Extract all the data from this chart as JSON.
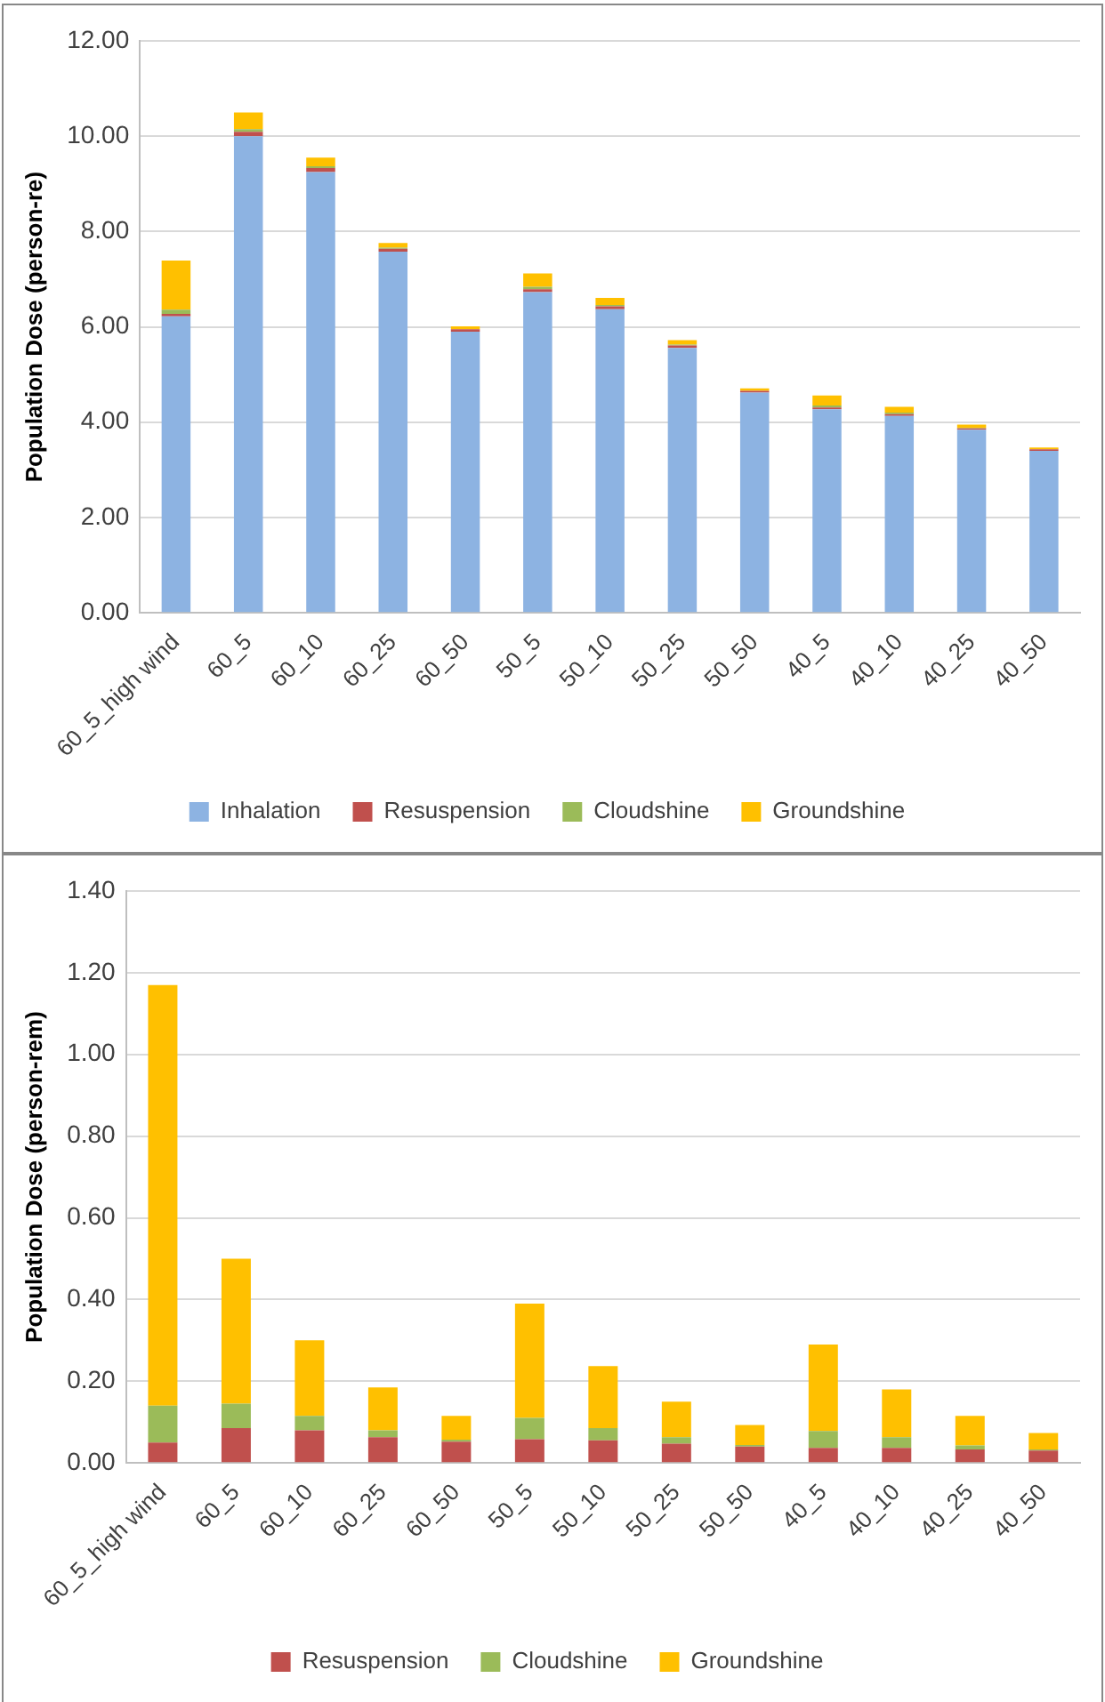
{
  "chart_data": [
    {
      "type": "bar",
      "stacked": true,
      "ylabel": "Population Dose (person-re)",
      "categories": [
        "60_5_high wind",
        "60_5",
        "60_10",
        "60_25",
        "60_50",
        "50_5",
        "50_10",
        "50_25",
        "50_50",
        "40_5",
        "40_10",
        "40_25",
        "40_50"
      ],
      "series": [
        {
          "name": "Inhalation",
          "color": "#8db3e2",
          "values": [
            6.22,
            10.0,
            9.25,
            7.58,
            5.9,
            6.73,
            6.37,
            5.56,
            4.62,
            4.27,
            4.13,
            3.84,
            3.4
          ]
        },
        {
          "name": "Resuspension",
          "color": "#c0504d",
          "values": [
            0.05,
            0.09,
            0.08,
            0.06,
            0.05,
            0.06,
            0.06,
            0.05,
            0.04,
            0.04,
            0.04,
            0.03,
            0.03
          ]
        },
        {
          "name": "Cloudshine",
          "color": "#9bbb59",
          "values": [
            0.09,
            0.06,
            0.04,
            0.02,
            null,
            0.05,
            0.03,
            0.02,
            0.0,
            0.04,
            0.03,
            0.01,
            0.0
          ]
        },
        {
          "name": "Groundshine",
          "color": "#ffc000",
          "values": [
            1.03,
            0.35,
            0.18,
            0.1,
            0.06,
            0.28,
            0.15,
            0.09,
            0.05,
            0.21,
            0.12,
            0.07,
            0.04
          ]
        }
      ],
      "ylim": [
        0,
        12
      ],
      "yticks": [
        {
          "value": 0,
          "label": "0.00"
        },
        {
          "value": 2,
          "label": "2.00"
        },
        {
          "value": 4,
          "label": "4.00"
        },
        {
          "value": 6,
          "label": "6.00"
        },
        {
          "value": 8,
          "label": "8.00"
        },
        {
          "value": 10,
          "label": "10.00"
        },
        {
          "value": 12,
          "label": "12.00"
        }
      ],
      "grid": "y",
      "legend": "bottom"
    },
    {
      "type": "bar",
      "stacked": true,
      "ylabel": "Population Dose (person-rem)",
      "categories": [
        "60_5_high wind",
        "60_5",
        "60_10",
        "60_25",
        "60_50",
        "50_5",
        "50_10",
        "50_25",
        "50_50",
        "40_5",
        "40_10",
        "40_25",
        "40_50"
      ],
      "series": [
        {
          "name": "Resuspension",
          "color": "#c0504d",
          "values": [
            0.05,
            0.085,
            0.08,
            0.063,
            0.052,
            0.058,
            0.055,
            0.047,
            0.04,
            0.037,
            0.037,
            0.033,
            0.03
          ]
        },
        {
          "name": "Cloudshine",
          "color": "#9bbb59",
          "values": [
            0.09,
            0.06,
            0.035,
            0.017,
            0.005,
            0.052,
            0.03,
            0.016,
            0.004,
            0.041,
            0.026,
            0.01,
            0.003
          ]
        },
        {
          "name": "Groundshine",
          "color": "#ffc000",
          "values": [
            1.03,
            0.355,
            0.185,
            0.105,
            0.058,
            0.28,
            0.152,
            0.087,
            0.049,
            0.212,
            0.117,
            0.072,
            0.04
          ]
        }
      ],
      "ylim": [
        0,
        1.4
      ],
      "yticks": [
        {
          "value": 0,
          "label": "0.00"
        },
        {
          "value": 0.2,
          "label": "0.20"
        },
        {
          "value": 0.4,
          "label": "0.40"
        },
        {
          "value": 0.6,
          "label": "0.60"
        },
        {
          "value": 0.8,
          "label": "0.80"
        },
        {
          "value": 1.0,
          "label": "1.00"
        },
        {
          "value": 1.2,
          "label": "1.20"
        },
        {
          "value": 1.4,
          "label": "1.40"
        }
      ],
      "grid": "y",
      "legend": "bottom"
    }
  ]
}
